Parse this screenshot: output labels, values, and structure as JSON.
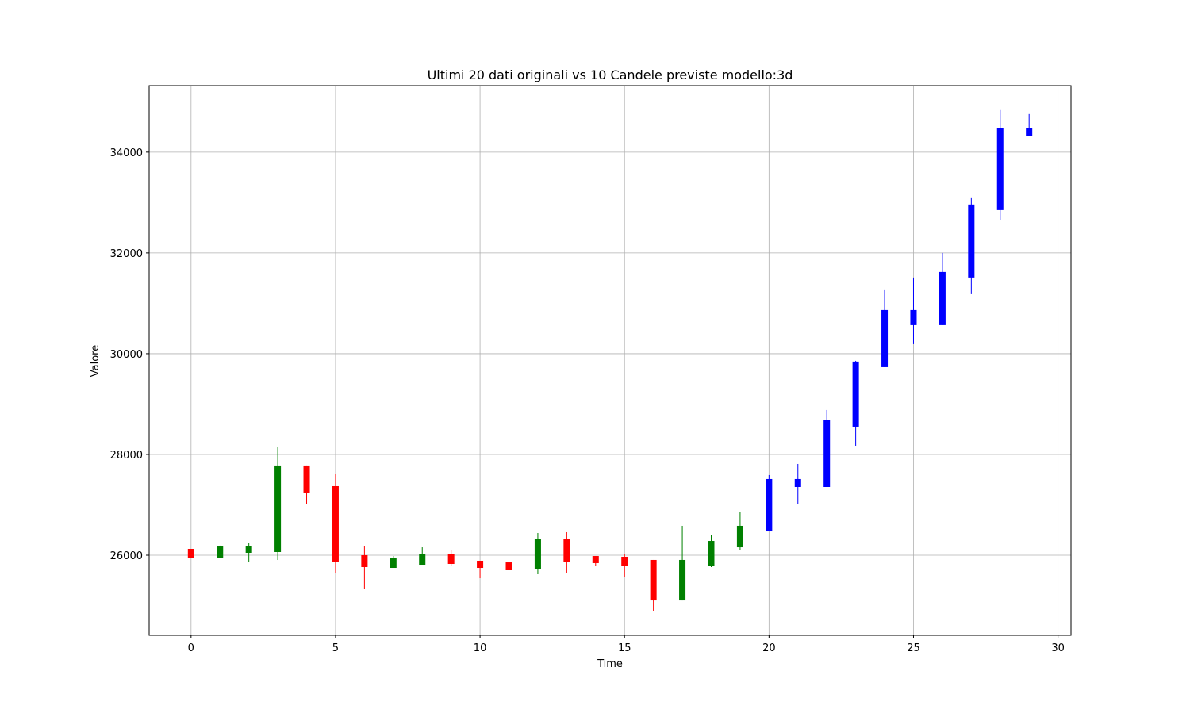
{
  "chart_data": {
    "type": "candlestick",
    "title": "Ultimi 20 dati originali vs 10 Candele previste modello:3d",
    "x_label": "Time",
    "y_label": "Valore",
    "xlim": [
      -1.45,
      30.45
    ],
    "xticks": [
      0,
      5,
      10,
      15,
      20,
      25,
      30
    ],
    "ylim": [
      24410,
      35320
    ],
    "yticks": [
      26000,
      28000,
      30000,
      32000,
      34000
    ],
    "grid": true,
    "series": [
      {
        "up_color": "green",
        "down_color": "red",
        "x": [
          0,
          1,
          2,
          3,
          4,
          5,
          6,
          7,
          8,
          9,
          10,
          11,
          12,
          13,
          14,
          15,
          16,
          17,
          18,
          19
        ],
        "open": [
          26126,
          25953,
          26047,
          26063,
          27780,
          27370,
          26000,
          25748,
          25811,
          26031,
          25890,
          25858,
          25717,
          26315,
          25984,
          25969,
          25906,
          25102,
          25795,
          26157
        ],
        "high": [
          26126,
          26190,
          26250,
          28157,
          27780,
          27606,
          26173,
          25984,
          26157,
          26110,
          25890,
          26047,
          26441,
          26457,
          25984,
          26031,
          25906,
          26583,
          26394,
          26866
        ],
        "low": [
          25953,
          25953,
          25858,
          25905,
          27008,
          25638,
          25339,
          25748,
          25811,
          25795,
          25543,
          25354,
          25622,
          25654,
          25795,
          25575,
          24898,
          25102,
          25764,
          26110
        ],
        "close": [
          25953,
          26173,
          26189,
          27780,
          27244,
          25874,
          25764,
          25937,
          26031,
          25827,
          25748,
          25701,
          26315,
          25874,
          25843,
          25795,
          25102,
          25906,
          26283,
          26583
        ]
      },
      {
        "color": "blue",
        "x": [
          20,
          21,
          22,
          23,
          24,
          25,
          26,
          27,
          28,
          29
        ],
        "open": [
          26472,
          27354,
          27354,
          28551,
          29732,
          30567,
          30567,
          31512,
          32850,
          34315
        ],
        "high": [
          27591,
          27811,
          28882,
          29858,
          31260,
          31512,
          32000,
          33087,
          34835,
          34756
        ],
        "low": [
          26472,
          27008,
          27354,
          28173,
          29732,
          30189,
          30567,
          31181,
          32646,
          34315
        ],
        "close": [
          27512,
          27512,
          28677,
          29843,
          30866,
          30866,
          31622,
          32961,
          34472,
          34472
        ]
      }
    ]
  }
}
